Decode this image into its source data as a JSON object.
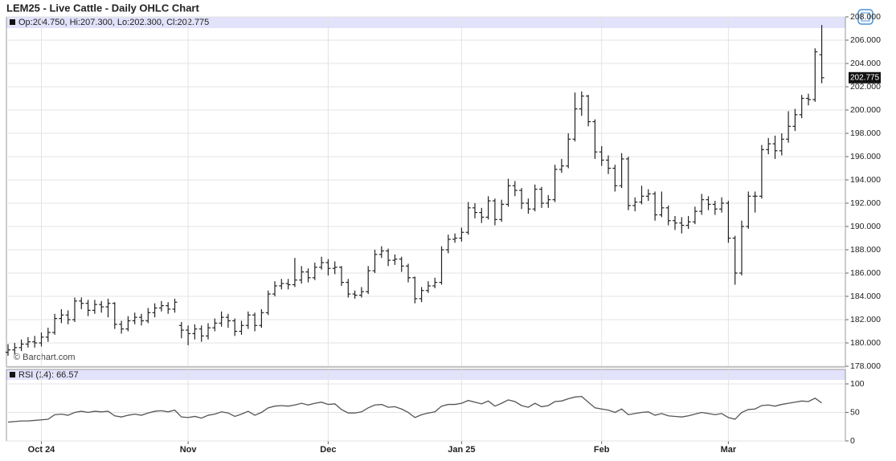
{
  "chart_data": [
    {
      "type": "ohlc",
      "title": "LEM25 - Live Cattle - Daily OHLC Chart",
      "legend": "Op:204.750, Hi:207.300, Lo:202.300, Cl:202.775",
      "watermark": "© Barchart.com",
      "price_label": "202.775",
      "color": "#222222",
      "grid": true,
      "categories": [
        null,
        null,
        null,
        null,
        null,
        "Oct 24",
        null,
        null,
        null,
        null,
        null,
        null,
        null,
        null,
        null,
        null,
        null,
        null,
        null,
        null,
        null,
        null,
        null,
        null,
        null,
        null,
        null,
        "Nov",
        null,
        null,
        null,
        null,
        null,
        null,
        null,
        null,
        null,
        null,
        null,
        null,
        null,
        null,
        null,
        null,
        null,
        null,
        null,
        null,
        "Dec",
        null,
        null,
        null,
        null,
        null,
        null,
        null,
        null,
        null,
        null,
        null,
        null,
        null,
        null,
        null,
        null,
        null,
        null,
        null,
        "Jan 25",
        null,
        null,
        null,
        null,
        null,
        null,
        null,
        null,
        null,
        null,
        null,
        null,
        null,
        null,
        null,
        null,
        null,
        null,
        null,
        null,
        "Feb",
        null,
        null,
        null,
        null,
        null,
        null,
        null,
        null,
        null,
        null,
        null,
        null,
        null,
        null,
        null,
        null,
        null,
        null,
        "Mar",
        null,
        null,
        null,
        null,
        null,
        null,
        null,
        null,
        null,
        null,
        null,
        null,
        null,
        null
      ],
      "open": [
        179.2,
        179.4,
        179.6,
        179.9,
        180.1,
        180.0,
        180.5,
        180.9,
        182.1,
        182.4,
        182.0,
        183.6,
        183.4,
        182.8,
        183.3,
        183.1,
        183.4,
        181.6,
        181.2,
        181.9,
        182.2,
        181.9,
        182.6,
        183.0,
        183.2,
        182.9,
        181.5,
        181.1,
        180.8,
        181.2,
        180.6,
        181.3,
        181.7,
        182.2,
        181.9,
        181.0,
        181.5,
        182.4,
        181.5,
        182.6,
        184.2,
        184.9,
        185.1,
        185.0,
        185.4,
        186.1,
        185.6,
        186.5,
        186.9,
        186.4,
        186.5,
        185.2,
        184.2,
        184.1,
        184.4,
        186.2,
        187.6,
        187.9,
        187.1,
        187.2,
        186.6,
        185.6,
        183.8,
        184.5,
        184.9,
        185.2,
        188.0,
        188.9,
        189.0,
        189.5,
        191.6,
        191.2,
        190.8,
        192.2,
        190.6,
        191.9,
        193.5,
        193.1,
        192.0,
        191.5,
        193.2,
        192.0,
        192.3,
        194.9,
        195.2,
        197.5,
        200.1,
        201.2,
        199.0,
        196.4,
        195.7,
        195.0,
        193.5,
        195.8,
        191.8,
        192.1,
        192.6,
        192.8,
        191.0,
        191.6,
        190.5,
        190.3,
        190.1,
        190.4,
        191.3,
        192.3,
        191.9,
        191.5,
        192.0,
        189.0,
        186.0,
        190.0,
        192.6,
        192.6,
        196.6,
        197.1,
        196.5,
        197.5,
        198.6,
        199.6,
        201.0,
        200.9,
        204.75
      ],
      "high": [
        179.9,
        180.0,
        180.3,
        180.5,
        180.6,
        180.9,
        181.3,
        182.5,
        182.9,
        182.8,
        183.9,
        183.9,
        183.7,
        183.7,
        183.6,
        183.8,
        183.5,
        181.9,
        182.3,
        182.6,
        182.5,
        183.0,
        183.4,
        183.6,
        183.5,
        183.8,
        181.8,
        181.5,
        181.6,
        181.5,
        181.7,
        182.1,
        182.7,
        182.5,
        182.1,
        181.9,
        182.7,
        182.6,
        182.9,
        184.5,
        185.3,
        185.5,
        185.5,
        187.3,
        186.6,
        186.4,
        186.9,
        187.4,
        187.2,
        187.0,
        186.6,
        185.5,
        184.5,
        184.8,
        186.6,
        188.0,
        188.3,
        188.1,
        187.6,
        187.4,
        186.8,
        185.7,
        184.8,
        185.3,
        185.6,
        188.3,
        189.3,
        189.4,
        189.9,
        192.1,
        192.0,
        191.6,
        192.6,
        192.4,
        192.3,
        194.1,
        193.9,
        193.3,
        192.4,
        193.6,
        193.4,
        192.7,
        195.3,
        195.8,
        198.0,
        201.5,
        201.6,
        201.3,
        199.2,
        196.9,
        196.1,
        195.3,
        196.3,
        196.0,
        192.5,
        193.5,
        193.2,
        193.0,
        193.0,
        191.8,
        190.9,
        190.8,
        190.9,
        191.7,
        192.8,
        192.6,
        192.2,
        192.5,
        192.2,
        189.2,
        190.5,
        193.0,
        193.0,
        197.0,
        197.6,
        197.8,
        198.0,
        199.9,
        200.1,
        201.3,
        201.4,
        205.3,
        207.3
      ],
      "low": [
        178.9,
        179.0,
        179.3,
        179.6,
        179.6,
        179.7,
        180.1,
        180.7,
        181.7,
        181.6,
        181.8,
        182.9,
        182.3,
        182.5,
        182.6,
        182.2,
        181.2,
        180.8,
        181.0,
        181.6,
        181.5,
        181.7,
        182.2,
        182.7,
        182.5,
        182.6,
        180.4,
        179.8,
        180.3,
        180.1,
        180.3,
        181.0,
        181.4,
        181.3,
        180.6,
        180.7,
        181.2,
        181.0,
        181.3,
        182.4,
        184.0,
        184.6,
        184.6,
        184.8,
        185.1,
        185.2,
        185.4,
        186.3,
        185.8,
        185.9,
        184.9,
        183.9,
        183.8,
        183.9,
        184.2,
        186.0,
        187.3,
        186.6,
        186.7,
        186.1,
        185.2,
        183.4,
        183.5,
        184.3,
        184.7,
        185.0,
        187.7,
        188.6,
        188.7,
        189.3,
        190.7,
        190.3,
        190.6,
        190.1,
        190.4,
        191.7,
        192.6,
        191.5,
        191.1,
        191.3,
        191.6,
        191.6,
        192.1,
        194.6,
        195.0,
        197.3,
        199.5,
        198.6,
        195.8,
        195.2,
        194.5,
        193.0,
        193.3,
        191.4,
        191.3,
        191.9,
        192.2,
        190.5,
        190.8,
        190.1,
        189.7,
        189.4,
        189.8,
        190.2,
        191.0,
        191.4,
        191.0,
        191.2,
        188.6,
        185.0,
        185.8,
        189.8,
        191.2,
        192.4,
        196.2,
        195.8,
        196.1,
        197.2,
        198.2,
        199.3,
        200.4,
        200.7,
        202.3
      ],
      "close": [
        179.4,
        179.6,
        179.9,
        180.1,
        180.0,
        180.5,
        180.9,
        182.1,
        182.4,
        182.0,
        183.6,
        183.4,
        182.8,
        183.3,
        183.1,
        183.4,
        181.6,
        181.2,
        181.9,
        182.2,
        181.9,
        182.6,
        183.0,
        183.2,
        182.9,
        183.5,
        181.1,
        180.8,
        181.2,
        180.6,
        181.3,
        181.7,
        182.2,
        181.9,
        181.0,
        181.5,
        182.4,
        181.5,
        182.6,
        184.2,
        184.9,
        185.1,
        185.0,
        185.4,
        186.1,
        185.6,
        186.5,
        186.9,
        186.4,
        186.5,
        185.2,
        184.2,
        184.1,
        184.4,
        186.2,
        187.6,
        187.9,
        187.1,
        187.2,
        186.6,
        185.6,
        183.8,
        184.5,
        184.9,
        185.2,
        188.0,
        188.9,
        189.0,
        189.5,
        191.6,
        191.2,
        190.8,
        192.2,
        190.6,
        191.9,
        193.5,
        193.1,
        192.0,
        191.5,
        193.2,
        192.0,
        192.3,
        194.9,
        195.2,
        197.5,
        200.1,
        201.2,
        199.0,
        196.4,
        195.7,
        195.0,
        193.5,
        195.8,
        191.8,
        192.1,
        192.6,
        192.8,
        191.0,
        191.6,
        190.5,
        190.3,
        190.1,
        190.4,
        191.3,
        192.3,
        191.9,
        191.5,
        192.0,
        189.0,
        186.0,
        190.0,
        192.6,
        192.6,
        196.6,
        197.1,
        196.5,
        197.5,
        198.6,
        199.6,
        201.0,
        200.9,
        205.0,
        202.775
      ],
      "ylim": [
        178,
        208
      ],
      "yticks": [
        {
          "value": 178,
          "label": "178.000"
        },
        {
          "value": 180,
          "label": "180.000"
        },
        {
          "value": 182,
          "label": "182.000"
        },
        {
          "value": 184,
          "label": "184.000"
        },
        {
          "value": 186,
          "label": "186.000"
        },
        {
          "value": 188,
          "label": "188.000"
        },
        {
          "value": 190,
          "label": "190.000"
        },
        {
          "value": 192,
          "label": "192.000"
        },
        {
          "value": 194,
          "label": "194.000"
        },
        {
          "value": 196,
          "label": "196.000"
        },
        {
          "value": 198,
          "label": "198.000"
        },
        {
          "value": 200,
          "label": "200.000"
        },
        {
          "value": 202,
          "label": "202.000"
        },
        {
          "value": 204,
          "label": "204.000"
        },
        {
          "value": 206,
          "label": "206.000"
        },
        {
          "value": 208,
          "label": "208.000"
        }
      ]
    },
    {
      "type": "line",
      "legend": "RSI (14): 66.57",
      "color": "#555555",
      "grid": true,
      "values": [
        33,
        34,
        35,
        35,
        36,
        37,
        38,
        46,
        47,
        45,
        50,
        52,
        50,
        52,
        51,
        52,
        44,
        42,
        45,
        47,
        45,
        49,
        52,
        53,
        51,
        54,
        42,
        41,
        43,
        40,
        45,
        47,
        51,
        49,
        43,
        47,
        52,
        45,
        50,
        58,
        61,
        62,
        61,
        63,
        66,
        63,
        66,
        68,
        64,
        65,
        55,
        49,
        49,
        51,
        58,
        63,
        64,
        59,
        60,
        56,
        50,
        41,
        46,
        49,
        51,
        61,
        64,
        64,
        66,
        71,
        68,
        65,
        70,
        61,
        66,
        72,
        69,
        62,
        59,
        66,
        60,
        62,
        69,
        70,
        74,
        77,
        78,
        68,
        58,
        56,
        54,
        50,
        56,
        46,
        48,
        50,
        51,
        45,
        48,
        44,
        43,
        42,
        44,
        47,
        50,
        48,
        46,
        48,
        41,
        38,
        50,
        55,
        56,
        62,
        63,
        61,
        64,
        66,
        68,
        70,
        69,
        75,
        66.57
      ],
      "ylim": [
        0,
        100
      ],
      "yticks": [
        0,
        50,
        100
      ]
    }
  ]
}
